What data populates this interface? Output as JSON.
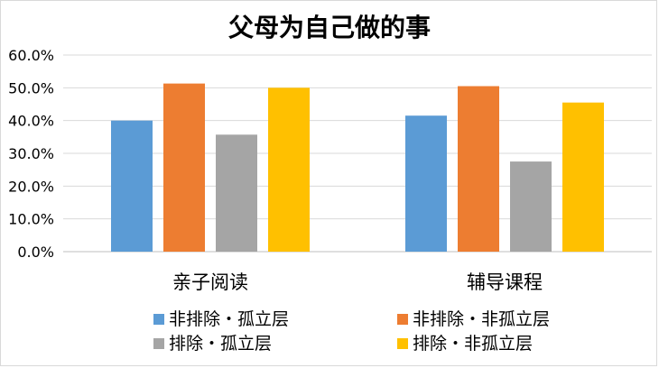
{
  "chart_data": {
    "type": "bar",
    "title": "父母为自己做的事",
    "categories": [
      "亲子阅读",
      "辅导课程"
    ],
    "series": [
      {
        "name": "非排除・孤立层",
        "color": "#5b9bd5",
        "values": [
          0.4,
          0.415
        ]
      },
      {
        "name": "非排除・非孤立层",
        "color": "#ed7d31",
        "values": [
          0.513,
          0.505
        ]
      },
      {
        "name": "排除・孤立层",
        "color": "#a5a5a5",
        "values": [
          0.357,
          0.275
        ]
      },
      {
        "name": "排除・非孤立层",
        "color": "#ffc000",
        "values": [
          0.5,
          0.455
        ]
      }
    ],
    "ylim": [
      0,
      0.6
    ],
    "yticks": [
      "0.0%",
      "10.0%",
      "20.0%",
      "30.0%",
      "40.0%",
      "50.0%",
      "60.0%"
    ],
    "grid": true,
    "legend_position": "bottom"
  }
}
